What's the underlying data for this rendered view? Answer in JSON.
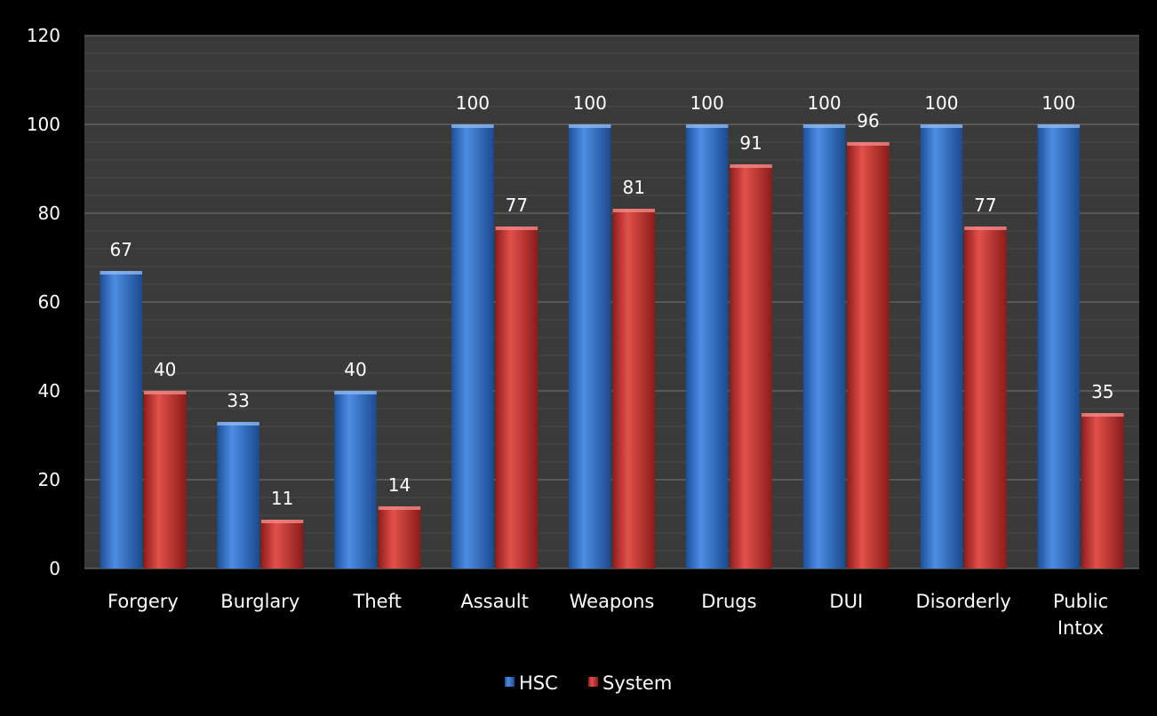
{
  "chart_data": {
    "type": "bar",
    "categories": [
      "Forgery",
      "Burglary",
      "Theft",
      "Assault",
      "Weapons",
      "Drugs",
      "DUI",
      "Disorderly",
      "Public Intox"
    ],
    "category_lines": [
      [
        "Forgery"
      ],
      [
        "Burglary"
      ],
      [
        "Theft"
      ],
      [
        "Assault"
      ],
      [
        "Weapons"
      ],
      [
        "Drugs"
      ],
      [
        "DUI"
      ],
      [
        "Disorderly"
      ],
      [
        "Public",
        "Intox"
      ]
    ],
    "series": [
      {
        "name": "HSC",
        "color": "#2e6fc9",
        "values": [
          67,
          33,
          40,
          100,
          100,
          100,
          100,
          100,
          100
        ]
      },
      {
        "name": "System",
        "color": "#c8302c",
        "values": [
          40,
          11,
          14,
          77,
          81,
          91,
          96,
          77,
          35
        ]
      }
    ],
    "title": "",
    "xlabel": "",
    "ylabel": "",
    "ylim": [
      0,
      120
    ],
    "yticks": [
      "0",
      "20",
      "40",
      "60",
      "80",
      "100",
      "120"
    ],
    "grid": true,
    "legend_position": "bottom",
    "background": "#000000",
    "plot_background": "#3a3a3a",
    "gridline_color": "#5a5a5a"
  }
}
